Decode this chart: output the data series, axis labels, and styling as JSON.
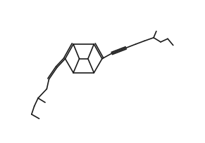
{
  "bg_color": "#ffffff",
  "line_color": "#1a1a1a",
  "line_width": 1.2,
  "fig_width": 2.91,
  "fig_height": 2.04,
  "dpi": 100
}
